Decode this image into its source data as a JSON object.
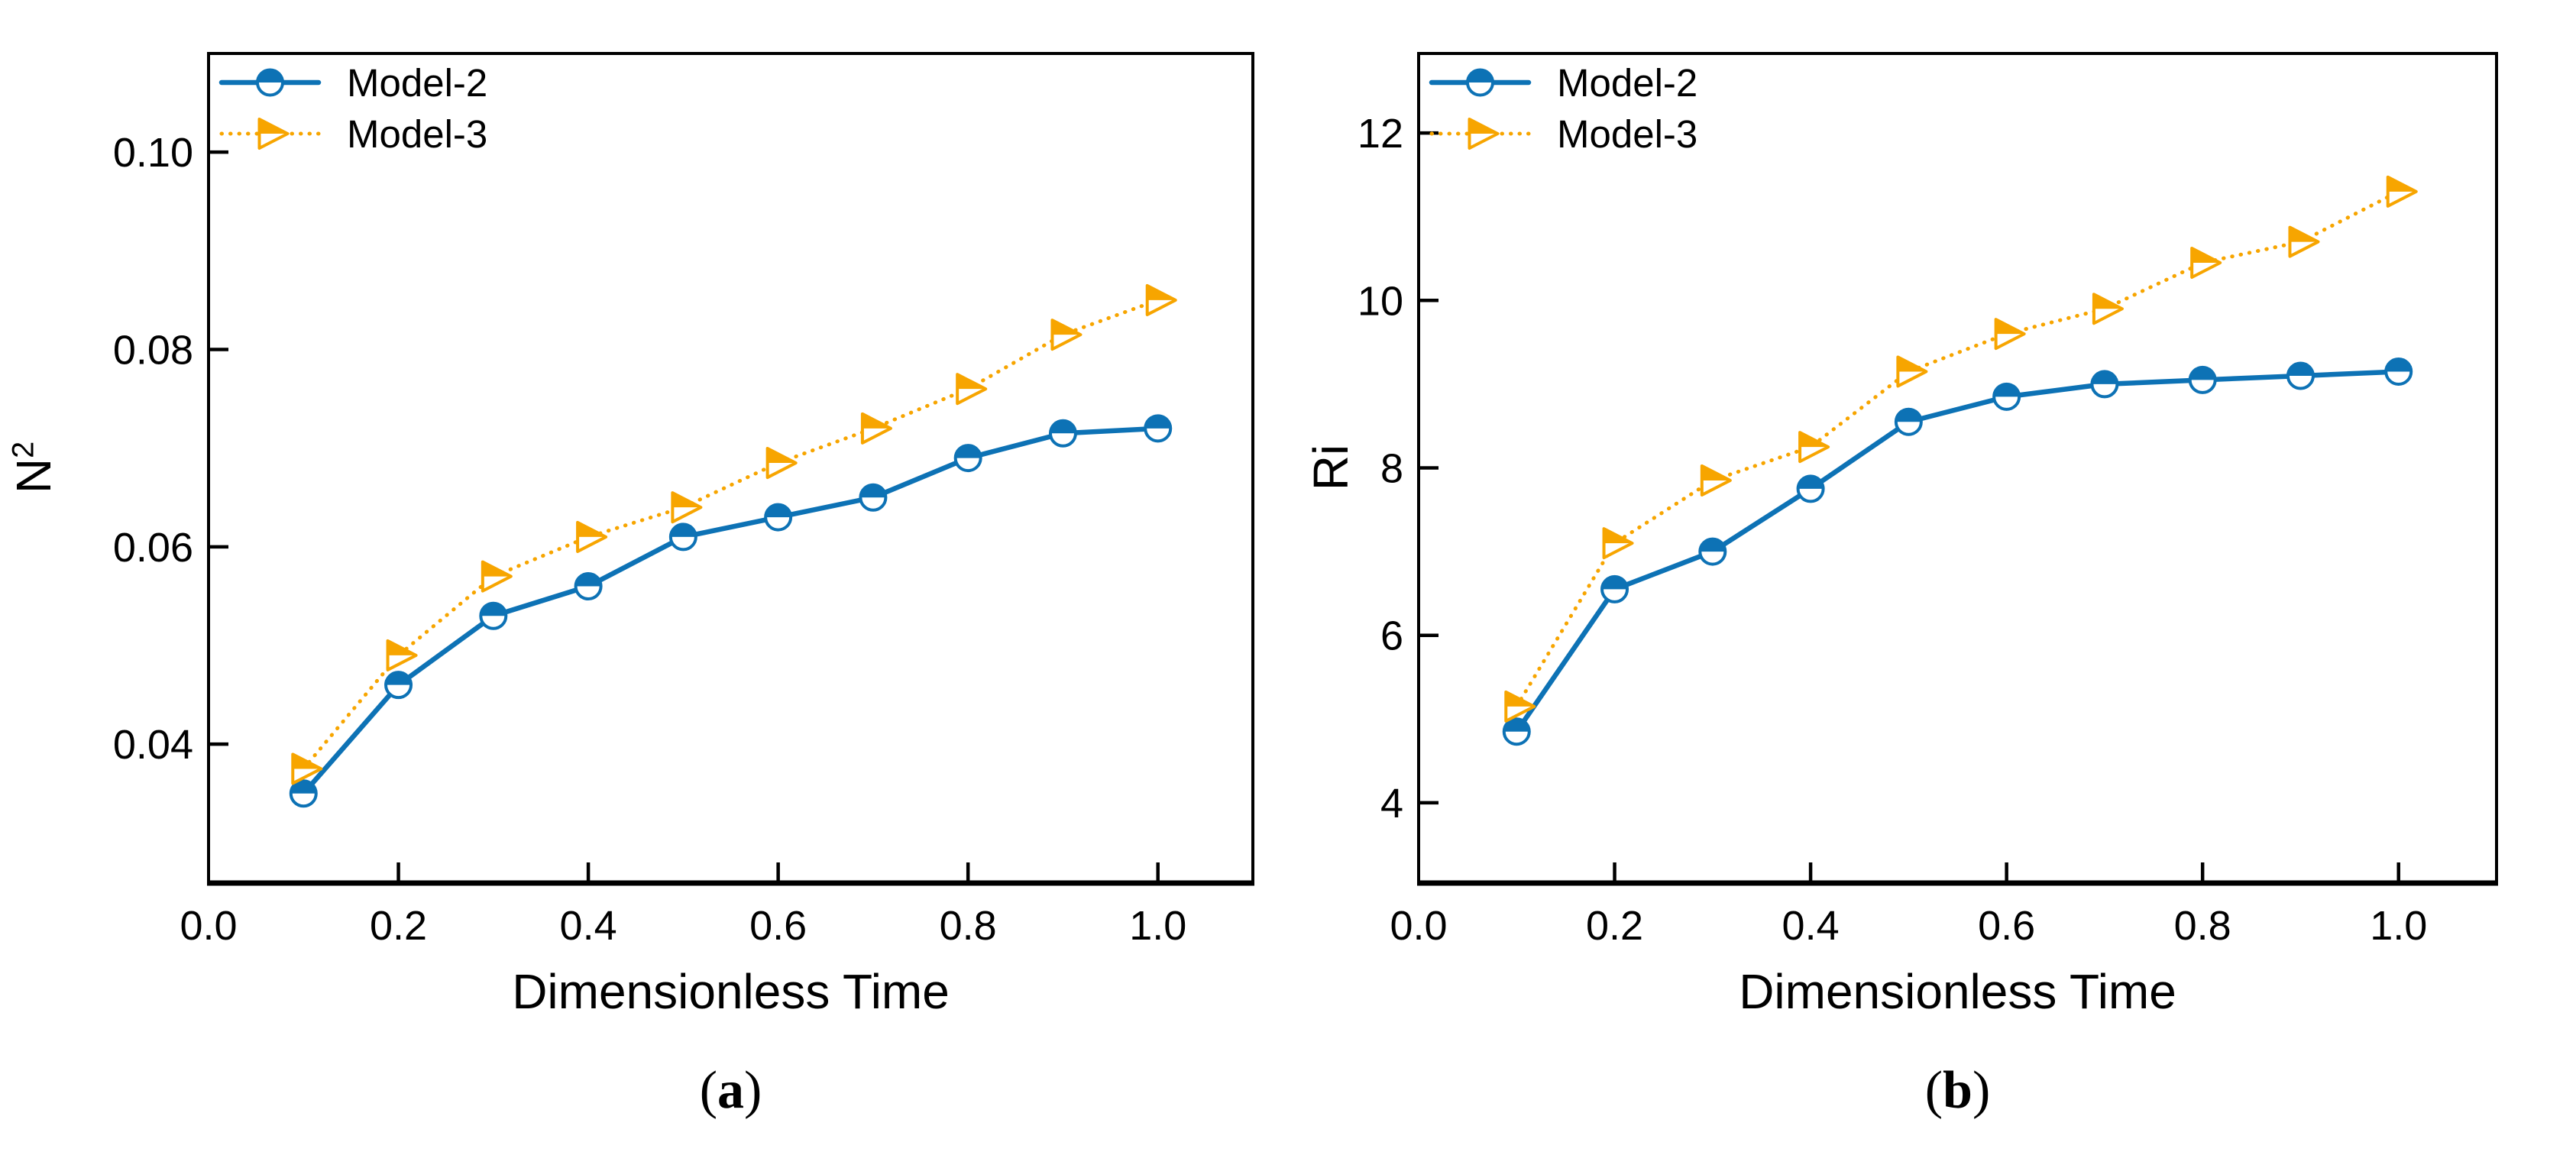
{
  "figure": {
    "background": "#ffffff",
    "text_color": "#000000",
    "frame_color": "#000000"
  },
  "chart_data": [
    {
      "id": "a",
      "type": "line",
      "caption_parts": {
        "open": "(",
        "letter": "a",
        "close": ")"
      },
      "xlabel": "Dimensionless Time",
      "ylabel_base": "N",
      "ylabel_sup": "2",
      "x": [
        0.1,
        0.2,
        0.3,
        0.4,
        0.5,
        0.6,
        0.7,
        0.8,
        0.9,
        1.0
      ],
      "series": [
        {
          "name": "Model-2",
          "color": "#0D72B5",
          "marker": "half-circle",
          "line_style": "solid",
          "values": [
            0.035,
            0.046,
            0.053,
            0.056,
            0.061,
            0.063,
            0.065,
            0.069,
            0.0715,
            0.072
          ]
        },
        {
          "name": "Model-3",
          "color": "#F7A500",
          "marker": "half-triangle-right",
          "line_style": "dotted",
          "values": [
            0.0375,
            0.049,
            0.057,
            0.061,
            0.064,
            0.0685,
            0.072,
            0.076,
            0.0815,
            0.085
          ]
        }
      ],
      "xlim": [
        0,
        1.1
      ],
      "ylim": [
        0.026,
        0.11
      ],
      "x_ticks": {
        "values": [
          0,
          0.2,
          0.4,
          0.6,
          0.8,
          1.0
        ],
        "labels": [
          "0.0",
          "0.2",
          "0.4",
          "0.6",
          "0.8",
          "1.0"
        ]
      },
      "y_ticks": {
        "values": [
          0.04,
          0.06,
          0.08,
          0.1
        ],
        "labels": [
          "0.04",
          "0.06",
          "0.08",
          "0.10"
        ]
      },
      "legend_position": "top-left",
      "grid": false
    },
    {
      "id": "b",
      "type": "line",
      "caption_parts": {
        "open": "(",
        "letter": "b",
        "close": ")"
      },
      "xlabel": "Dimensionless Time",
      "ylabel_base": "Ri",
      "ylabel_sup": "",
      "x": [
        0.1,
        0.2,
        0.3,
        0.4,
        0.5,
        0.6,
        0.7,
        0.8,
        0.9,
        1.0
      ],
      "series": [
        {
          "name": "Model-2",
          "color": "#0D72B5",
          "marker": "half-circle",
          "line_style": "solid",
          "values": [
            4.85,
            6.55,
            7.0,
            7.75,
            8.55,
            8.85,
            9.0,
            9.05,
            9.1,
            9.15
          ]
        },
        {
          "name": "Model-3",
          "color": "#F7A500",
          "marker": "half-triangle-right",
          "line_style": "dotted",
          "values": [
            5.15,
            7.1,
            7.85,
            8.25,
            9.15,
            9.6,
            9.9,
            10.45,
            10.7,
            11.3
          ]
        }
      ],
      "xlim": [
        0,
        1.1
      ],
      "ylim": [
        3.05,
        12.95
      ],
      "x_ticks": {
        "values": [
          0,
          0.2,
          0.4,
          0.6,
          0.8,
          1.0
        ],
        "labels": [
          "0.0",
          "0.2",
          "0.4",
          "0.6",
          "0.8",
          "1.0"
        ]
      },
      "y_ticks": {
        "values": [
          4,
          6,
          8,
          10,
          12
        ],
        "labels": [
          "4",
          "6",
          "8",
          "10",
          "12"
        ]
      },
      "legend_position": "top-left",
      "grid": false
    }
  ]
}
